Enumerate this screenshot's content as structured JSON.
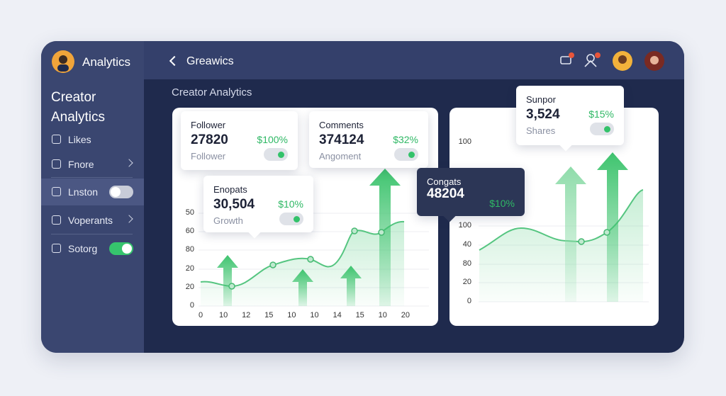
{
  "sidebar": {
    "brand": "Analytics",
    "section_title": "Creator Analytics",
    "items": [
      {
        "label": "Likes"
      },
      {
        "label": "Fnore",
        "chevron": true
      },
      {
        "label": "Lnston",
        "toggle": false,
        "active": true
      },
      {
        "label": "Voperants",
        "chevron": true
      },
      {
        "label": "Sotorg",
        "toggle": true
      }
    ]
  },
  "topbar": {
    "title": "Greawics"
  },
  "content_title": "Creator Analytics",
  "cards": [
    {
      "title": "Follower",
      "value": "27820",
      "change": "$100%",
      "caption": "Follower"
    },
    {
      "title": "Comments",
      "value": "374124",
      "change": "$32%",
      "caption": "Angoment"
    },
    {
      "title": "Enopats",
      "value": "30,504",
      "change": "$10%",
      "caption": "Growth"
    },
    {
      "title": "Congats",
      "value": "48204",
      "change": "$10%"
    },
    {
      "title": "Sunpor",
      "value": "3,524",
      "change": "$15%",
      "caption": "Shares"
    }
  ],
  "charts": [
    {
      "y_labels": [
        "50",
        "60",
        "80",
        "20",
        "20",
        "0"
      ],
      "x_labels": [
        "0",
        "10",
        "12",
        "15",
        "10",
        "10",
        "14",
        "15",
        "10",
        "20"
      ]
    },
    {
      "y_labels": [
        "100",
        "100",
        "40",
        "80",
        "20",
        "0"
      ]
    }
  ]
}
